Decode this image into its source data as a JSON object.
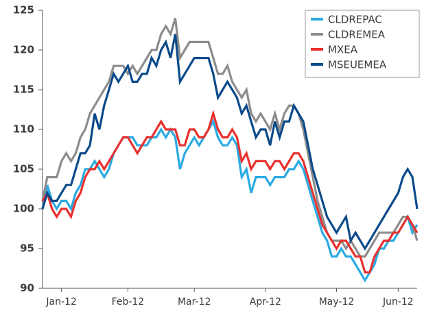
{
  "chart_data": {
    "type": "line",
    "categories": [
      null,
      null,
      null,
      null,
      "Jan-12",
      null,
      null,
      null,
      null,
      null,
      null,
      null,
      null,
      null,
      null,
      null,
      null,
      null,
      "Feb-12",
      null,
      null,
      null,
      null,
      null,
      null,
      null,
      null,
      null,
      null,
      null,
      null,
      null,
      "Mar-12",
      null,
      null,
      null,
      null,
      null,
      null,
      null,
      null,
      null,
      null,
      null,
      null,
      null,
      null,
      "Apr-12",
      null,
      null,
      null,
      null,
      null,
      null,
      null,
      null,
      null,
      null,
      null,
      null,
      null,
      null,
      "May-12",
      null,
      null,
      null,
      null,
      null,
      null,
      null,
      null,
      null,
      null,
      null,
      null,
      "Jun-12",
      null,
      null,
      null,
      null
    ],
    "series": [
      {
        "name": "CLDREPAC",
        "color": "#2aaae2",
        "values": [
          100,
          103,
          101,
          100,
          101,
          101,
          100,
          102,
          103,
          105,
          105,
          106,
          105,
          104,
          105,
          107,
          108,
          109,
          109,
          109,
          108,
          108,
          108,
          109,
          109,
          110,
          109,
          110,
          109,
          105,
          107,
          108,
          109,
          108,
          109,
          110,
          111,
          109,
          108,
          108,
          109,
          108,
          104,
          105,
          102,
          104,
          104,
          104,
          103,
          104,
          104,
          104,
          105,
          105,
          106,
          105,
          103,
          101,
          99,
          97,
          96,
          94,
          94,
          95,
          94,
          94,
          93,
          92,
          91,
          92,
          93,
          95,
          95,
          96,
          96,
          97,
          98,
          99,
          97,
          98
        ]
      },
      {
        "name": "CLDREMEA",
        "color": "#8c8c8c",
        "values": [
          101,
          104,
          104,
          104,
          106,
          107,
          106,
          107,
          109,
          110,
          112,
          113,
          114,
          115,
          116,
          118,
          118,
          118,
          117,
          118,
          117,
          118,
          119,
          120,
          120,
          122,
          123,
          122,
          124,
          119,
          120,
          121,
          121,
          121,
          121,
          121,
          119,
          117,
          117,
          118,
          116,
          115,
          114,
          115,
          112,
          111,
          112,
          111,
          110,
          112,
          110,
          112,
          113,
          113,
          112,
          110,
          107,
          104,
          101,
          99,
          97,
          96,
          96,
          96,
          95,
          96,
          95,
          94,
          94,
          95,
          96,
          97,
          97,
          97,
          97,
          98,
          99,
          99,
          98,
          96
        ]
      },
      {
        "name": "MXEA",
        "color": "#e8312f",
        "values": [
          101,
          102,
          100,
          99,
          100,
          100,
          99,
          101,
          102,
          104,
          105,
          105,
          106,
          105,
          106,
          107,
          108,
          109,
          109,
          108,
          107,
          108,
          109,
          109,
          110,
          111,
          110,
          110,
          110,
          108,
          108,
          110,
          110,
          109,
          109,
          110,
          112,
          110,
          109,
          109,
          110,
          109,
          106,
          107,
          105,
          106,
          106,
          106,
          105,
          106,
          106,
          105,
          106,
          107,
          107,
          106,
          104,
          102,
          100,
          98,
          97,
          96,
          95,
          96,
          96,
          95,
          94,
          94,
          92,
          92,
          94,
          95,
          96,
          96,
          97,
          97,
          98,
          99,
          98,
          97
        ]
      },
      {
        "name": "MSEUEMEA",
        "color": "#0b4a8b",
        "values": [
          100,
          102,
          101,
          101,
          102,
          103,
          103,
          105,
          107,
          107,
          108,
          112,
          110,
          113,
          115,
          117,
          116,
          117,
          118,
          116,
          116,
          117,
          117,
          119,
          118,
          120,
          121,
          119,
          122,
          116,
          117,
          118,
          119,
          119,
          119,
          119,
          117,
          114,
          115,
          116,
          115,
          114,
          112,
          113,
          111,
          109,
          110,
          110,
          108,
          111,
          109,
          111,
          111,
          113,
          112,
          111,
          108,
          105,
          103,
          101,
          99,
          98,
          97,
          98,
          99,
          96,
          97,
          96,
          95,
          96,
          97,
          98,
          99,
          100,
          101,
          102,
          104,
          105,
          104,
          100
        ]
      }
    ],
    "ylim": [
      90,
      125
    ],
    "yticks": [
      90,
      95,
      100,
      105,
      110,
      115,
      120,
      125
    ],
    "legend": "upper right"
  }
}
